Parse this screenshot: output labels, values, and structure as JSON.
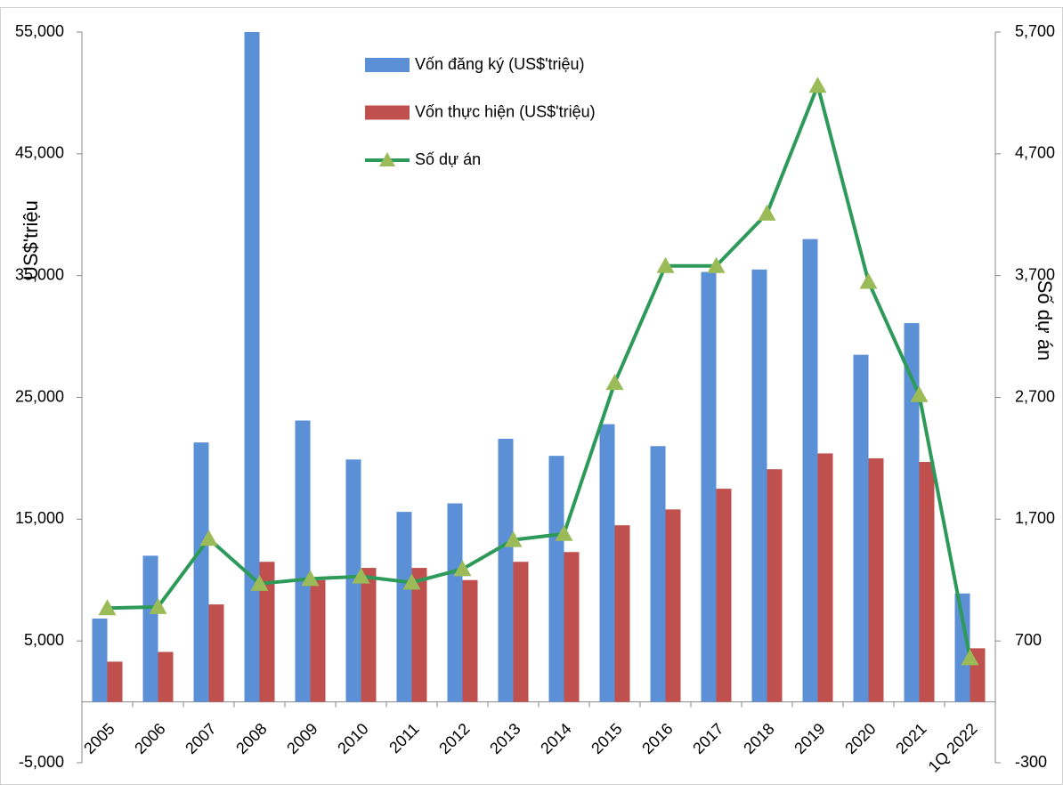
{
  "chart_data": {
    "type": "bar",
    "y_label": "US$'triệu",
    "y2_label": "Số dự án",
    "categories": [
      "2005",
      "2006",
      "2007",
      "2008",
      "2009",
      "2010",
      "2011",
      "2012",
      "2013",
      "2014",
      "2015",
      "2016",
      "2017",
      "2018",
      "2019",
      "2020",
      "2021",
      "1Q 2022"
    ],
    "series": [
      {
        "name": "Vốn đăng ký (US$'triệu)",
        "type": "bar",
        "color": "#5b8fd6",
        "values": [
          6840,
          12000,
          21300,
          55000,
          23100,
          19900,
          15600,
          16300,
          21600,
          20200,
          22800,
          21000,
          35300,
          35500,
          38000,
          28500,
          31100,
          8900
        ]
      },
      {
        "name": "Vốn thực hiện (US$'triệu)",
        "type": "bar",
        "color": "#c0504d",
        "values": [
          3300,
          4100,
          8000,
          11500,
          10000,
          11000,
          11000,
          10000,
          11500,
          12300,
          14500,
          15800,
          17500,
          19100,
          20400,
          20000,
          19700,
          4400
        ]
      },
      {
        "name": "Số dự án",
        "type": "line",
        "axis": "y2",
        "color": "#2e9a5a",
        "marker_color": "#9bbb59",
        "values": [
          970,
          980,
          1540,
          1170,
          1210,
          1230,
          1180,
          1290,
          1530,
          1580,
          2820,
          3780,
          3780,
          4210,
          5260,
          3650,
          2720,
          560
        ]
      }
    ],
    "ylim": [
      -5000,
      55000
    ],
    "yticks": [
      {
        "value": -5000,
        "label": "-5,000"
      },
      {
        "value": 5000,
        "label": "5,000"
      },
      {
        "value": 15000,
        "label": "15,000"
      },
      {
        "value": 25000,
        "label": "25,000"
      },
      {
        "value": 35000,
        "label": "35,000"
      },
      {
        "value": 45000,
        "label": "45,000"
      },
      {
        "value": 55000,
        "label": "55,000"
      }
    ],
    "y2lim": [
      -300,
      5700
    ],
    "y2ticks": [
      -300,
      700,
      {
        "value": 1700,
        "label": "1,700"
      },
      {
        "value": 2700,
        "label": "2,700"
      },
      {
        "value": 3700,
        "label": "3,700"
      },
      {
        "value": 4700,
        "label": "4,700"
      },
      {
        "value": 5700,
        "label": "5,700"
      }
    ],
    "grid": false,
    "legend": "top"
  }
}
